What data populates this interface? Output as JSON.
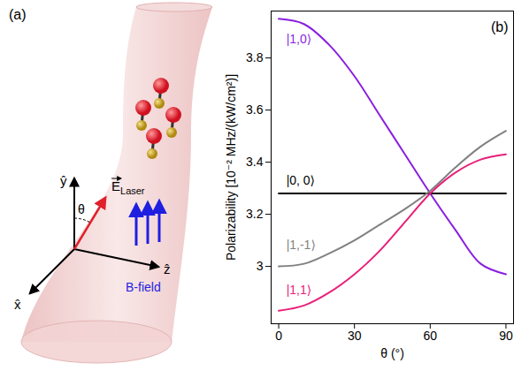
{
  "diagram": {
    "panel_label": "(a)",
    "axes": {
      "x": "x̂",
      "y": "ŷ",
      "z": "ẑ"
    },
    "angle": "θ",
    "laser_field": {
      "symbol": "E",
      "subscript": "Laser"
    },
    "magnetic_field": "B-field"
  },
  "chart_data": {
    "type": "line",
    "panel_label": "(b)",
    "xlabel": "θ (°)",
    "ylabel": "Polarizability [10⁻² MHz/(kW/cm²)]",
    "x": [
      0,
      10,
      20,
      30,
      40,
      50,
      60,
      70,
      80,
      90
    ],
    "xlim": [
      -3,
      93
    ],
    "xticks": [
      0,
      30,
      60,
      90
    ],
    "ylim": [
      2.78,
      3.98
    ],
    "yticks": [
      3,
      3.2,
      3.4,
      3.6,
      3.8
    ],
    "series": [
      {
        "name": "|1,0⟩",
        "color": "#8a1fe0",
        "values": [
          3.95,
          3.93,
          3.85,
          3.73,
          3.58,
          3.43,
          3.28,
          3.14,
          3.01,
          2.97
        ]
      },
      {
        "name": "|0, 0⟩",
        "color": "#000000",
        "values": [
          3.28,
          3.28,
          3.28,
          3.28,
          3.28,
          3.28,
          3.28,
          3.28,
          3.28,
          3.28
        ]
      },
      {
        "name": "|1,-1⟩",
        "color": "#808080",
        "values": [
          3.0,
          3.01,
          3.05,
          3.1,
          3.16,
          3.22,
          3.29,
          3.38,
          3.46,
          3.52
        ]
      },
      {
        "name": "|1,1⟩",
        "color": "#e8207a",
        "values": [
          2.83,
          2.85,
          2.9,
          2.97,
          3.06,
          3.17,
          3.28,
          3.36,
          3.41,
          3.43
        ]
      }
    ],
    "annotations": [
      {
        "text": "|1,0⟩",
        "x": 3,
        "y": 3.87,
        "color": "#8a1fe0"
      },
      {
        "text": "|0, 0⟩",
        "x": 3,
        "y": 3.33,
        "color": "#000000"
      },
      {
        "text": "|1,-1⟩",
        "x": 3,
        "y": 3.08,
        "color": "#808080"
      },
      {
        "text": "|1,1⟩",
        "x": 3,
        "y": 2.91,
        "color": "#e8207a"
      }
    ]
  }
}
